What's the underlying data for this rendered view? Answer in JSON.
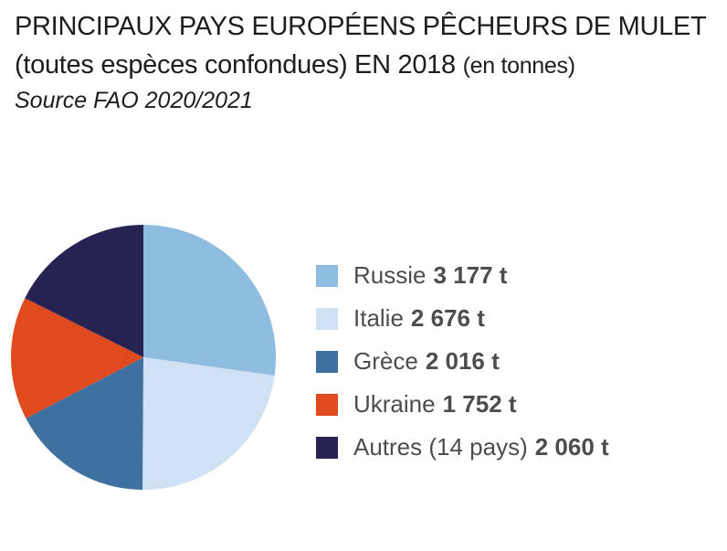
{
  "title": {
    "line1": "PRINCIPAUX PAYS EUROPÉENS PÊCHEURS DE MULET",
    "line2": "(toutes espèces confondues) EN 2018",
    "unit": "(en tonnes)"
  },
  "source": "Source FAO 2020/2021",
  "chart_data": {
    "type": "pie",
    "unit": "t",
    "legend_position": "right",
    "slices": [
      {
        "label": "Russie",
        "value": 3177,
        "value_label": "3 177 t",
        "color": "#8fbde0"
      },
      {
        "label": "Italie",
        "value": 2676,
        "value_label": "2 676 t",
        "color": "#cfe1f3"
      },
      {
        "label": "Grèce",
        "value": 2016,
        "value_label": "2 016 t",
        "color": "#3e71a0"
      },
      {
        "label": "Ukraine",
        "value": 1752,
        "value_label": "1 752 t",
        "color": "#e04a1f"
      },
      {
        "label": "Autres (14 pays)",
        "value": 2060,
        "value_label": "2 060 t",
        "color": "#262251"
      }
    ]
  }
}
